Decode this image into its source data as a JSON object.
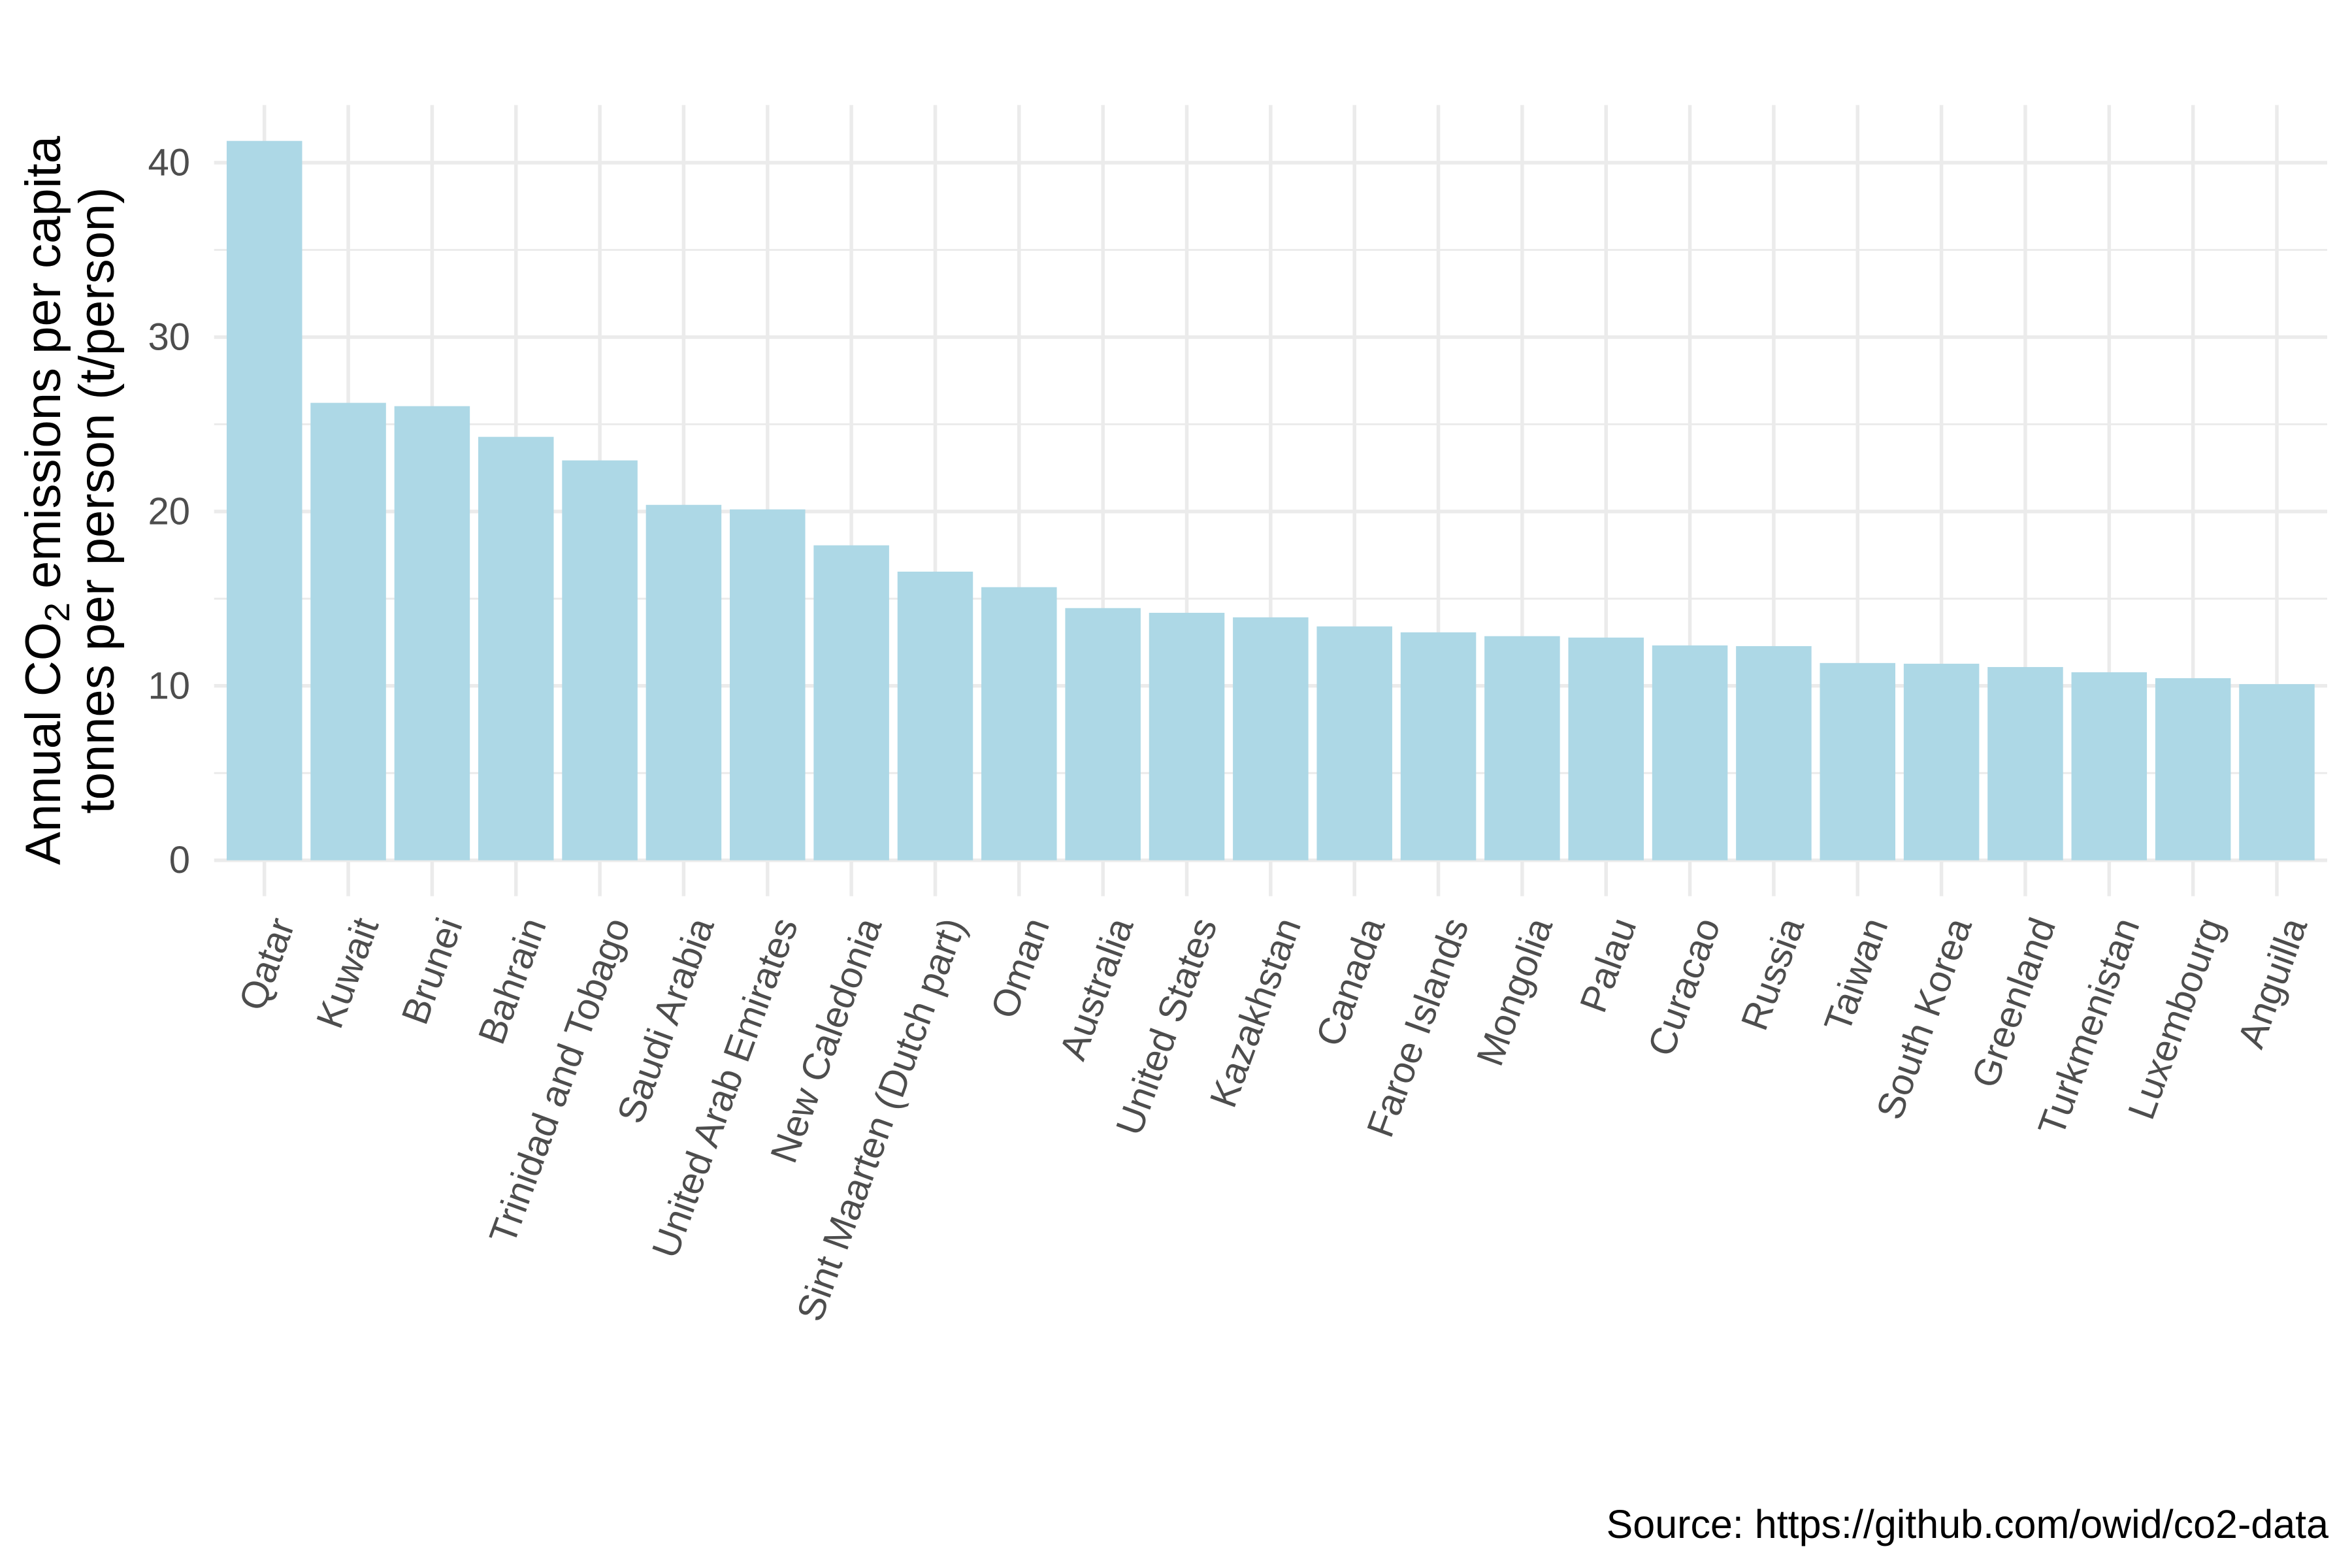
{
  "chart_data": {
    "type": "bar",
    "title": "",
    "xlabel": "",
    "ylabel": {
      "line1_prefix": "Annual CO",
      "line1_subscript": "2",
      "line1_suffix": " emissions per capita",
      "line2": "tonnes per person (t/person)"
    },
    "caption": "Source: https://github.com/owid/co2-data",
    "ylim": [
      -2.06,
      43.31
    ],
    "y_ticks": [
      0,
      10,
      20,
      30,
      40
    ],
    "y_tick_labels": [
      "0",
      "10",
      "20",
      "30",
      "40"
    ],
    "y_minor_ticks": [
      5,
      15,
      25,
      35
    ],
    "grid": true,
    "legend": "none",
    "x_tick_angle": 70,
    "bar_color": "#add8e6",
    "grid_color": "#ebebeb",
    "categories": [
      "Qatar",
      "Kuwait",
      "Brunei",
      "Bahrain",
      "Trinidad and Tobago",
      "Saudi Arabia",
      "United Arab Emirates",
      "New Caledonia",
      "Sint Maarten (Dutch part)",
      "Oman",
      "Australia",
      "United States",
      "Kazakhstan",
      "Canada",
      "Faroe Islands",
      "Mongolia",
      "Palau",
      "Curacao",
      "Russia",
      "Taiwan",
      "South Korea",
      "Greenland",
      "Turkmenistan",
      "Luxembourg",
      "Anguilla"
    ],
    "values": [
      41.25,
      26.23,
      26.04,
      24.28,
      22.93,
      20.38,
      20.12,
      18.06,
      16.55,
      15.66,
      14.46,
      14.19,
      13.93,
      13.41,
      13.07,
      12.85,
      12.77,
      12.32,
      12.28,
      11.31,
      11.27,
      11.08,
      10.78,
      10.44,
      10.1
    ]
  }
}
